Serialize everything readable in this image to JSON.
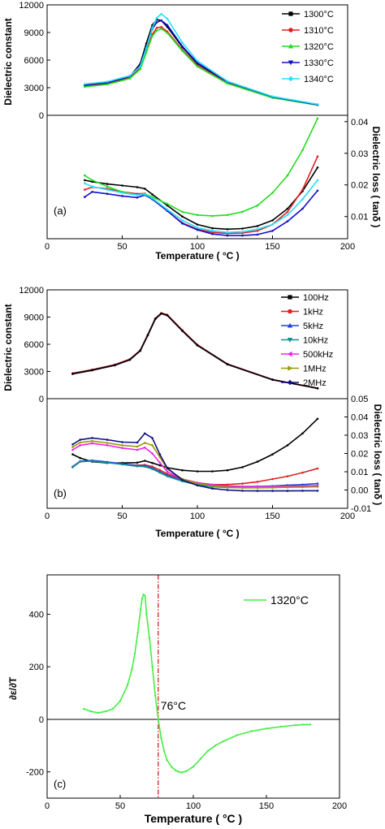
{
  "colors": {
    "1300": "#000000",
    "1310": "#e02020",
    "1320": "#22dd22",
    "1330": "#1010c8",
    "1340": "#22e0ff",
    "100Hz": "#000000",
    "1kHz": "#e02020",
    "5kHz": "#2040e0",
    "10kHz": "#109090",
    "500kHz": "#ee22ee",
    "1MHz": "#999900",
    "2MHz": "#101080",
    "c_line": "#44ee44",
    "vline": "#cc1111"
  },
  "chart_data": [
    {
      "id": "a",
      "type": "line",
      "panel_label": "(a)",
      "xlabel": "Temperature ( °C )",
      "xlim": [
        0,
        200
      ],
      "xticks": [
        "0",
        "50",
        "100",
        "150",
        "200"
      ],
      "top": {
        "ylabel": "Dielectric constant",
        "ylim": [
          0,
          12000
        ],
        "yticks": [
          "0",
          "3000",
          "6000",
          "9000",
          "12000"
        ],
        "x": [
          25,
          40,
          55,
          62,
          66,
          70,
          73,
          76,
          80,
          90,
          100,
          120,
          150,
          180
        ],
        "series": [
          {
            "name": "1300°C",
            "key": "1300",
            "marker": "square",
            "values": [
              3250,
              3500,
              4200,
              5600,
              7800,
              9800,
              10400,
              10300,
              9600,
              7400,
              5600,
              3600,
              2000,
              1150
            ]
          },
          {
            "name": "1310°C",
            "key": "1310",
            "marker": "circle",
            "values": [
              3150,
              3400,
              4050,
              5200,
              7000,
              8800,
              9500,
              9600,
              9100,
              7100,
              5400,
              3500,
              1950,
              1130
            ]
          },
          {
            "name": "1320°C",
            "key": "1320",
            "marker": "triangle-up",
            "values": [
              3100,
              3350,
              4000,
              5000,
              6800,
              8600,
              9200,
              9400,
              8950,
              7000,
              5300,
              3450,
              1900,
              1100
            ]
          },
          {
            "name": "1330°C",
            "key": "1330",
            "marker": "triangle-down",
            "values": [
              3300,
              3550,
              4250,
              5400,
              7400,
              9400,
              10100,
              10300,
              9800,
              7500,
              5700,
              3650,
              2000,
              1150
            ]
          },
          {
            "name": "1340°C",
            "key": "1340",
            "marker": "diamond",
            "values": [
              3400,
              3650,
              4300,
              5300,
              7300,
              9500,
              10600,
              11000,
              10500,
              7900,
              5900,
              3700,
              2050,
              1200
            ]
          }
        ]
      },
      "bottom": {
        "ylabel": "Dielectric loss ( tanδ )",
        "ylim": [
          0.003,
          0.042
        ],
        "yticks": [
          "0.01",
          "0.02",
          "0.03",
          "0.04"
        ],
        "x": [
          25,
          30,
          40,
          50,
          60,
          65,
          70,
          80,
          90,
          100,
          110,
          120,
          130,
          140,
          150,
          160,
          170,
          180
        ],
        "series": [
          {
            "key": "1300",
            "values": [
              0.0215,
              0.021,
              0.0203,
              0.0198,
              0.0193,
              0.0188,
              0.017,
              0.0135,
              0.01,
              0.0075,
              0.0063,
              0.006,
              0.0062,
              0.007,
              0.0088,
              0.0125,
              0.018,
              0.0255
            ]
          },
          {
            "key": "1310",
            "values": [
              0.0185,
              0.0193,
              0.0188,
              0.0178,
              0.0172,
              0.0173,
              0.0155,
              0.0118,
              0.008,
              0.006,
              0.005,
              0.0047,
              0.0048,
              0.0055,
              0.0075,
              0.0115,
              0.0185,
              0.029
            ]
          },
          {
            "key": "1320",
            "values": [
              0.023,
              0.0215,
              0.0195,
              0.0178,
              0.0168,
              0.0172,
              0.0162,
              0.014,
              0.0115,
              0.0105,
              0.0102,
              0.0105,
              0.0115,
              0.0135,
              0.0175,
              0.023,
              0.031,
              0.041
            ]
          },
          {
            "key": "1330",
            "values": [
              0.0162,
              0.0178,
              0.0172,
              0.0165,
              0.016,
              0.0168,
              0.0155,
              0.0118,
              0.0078,
              0.0058,
              0.0045,
              0.004,
              0.004,
              0.0043,
              0.0055,
              0.0085,
              0.0125,
              0.0182
            ]
          },
          {
            "key": "1340",
            "values": [
              0.0205,
              0.0195,
              0.0185,
              0.0175,
              0.0168,
              0.017,
              0.0158,
              0.0122,
              0.0088,
              0.0065,
              0.0055,
              0.005,
              0.0052,
              0.006,
              0.0075,
              0.0105,
              0.0155,
              0.0215
            ]
          }
        ]
      }
    },
    {
      "id": "b",
      "type": "line",
      "panel_label": "(b)",
      "xlabel": "Temperature ( °C )",
      "xlim": [
        0,
        200
      ],
      "xticks": [
        "0",
        "50",
        "100",
        "150",
        "200"
      ],
      "top": {
        "ylabel": "Dielectric constant",
        "ylim": [
          0,
          12000
        ],
        "yticks": [
          "0",
          "3000",
          "6000",
          "9000",
          "12000"
        ],
        "x": [
          17,
          30,
          45,
          55,
          62,
          67,
          72,
          76,
          80,
          90,
          100,
          120,
          150,
          180
        ],
        "series": [
          {
            "name": "100Hz",
            "key": "100Hz",
            "marker": "square",
            "values": [
              2750,
              3150,
              3700,
              4300,
              5300,
              7000,
              8800,
              9400,
              9200,
              7500,
              5900,
              3800,
              2100,
              1150
            ]
          },
          {
            "name": "1kHz",
            "key": "1kHz",
            "marker": "circle",
            "values": [
              2800,
              3200,
              3750,
              4350,
              5350,
              7050,
              8850,
              9450,
              9250,
              7550,
              5950,
              3820,
              2110,
              1150
            ]
          },
          {
            "name": "5kHz",
            "key": "5kHz",
            "marker": "triangle-up",
            "values": [
              2780,
              3180,
              3730,
              4330,
              5330,
              7030,
              8830,
              9420,
              9220,
              7520,
              5920,
              3810,
              2100,
              1150
            ]
          },
          {
            "name": "10kHz",
            "key": "10kHz",
            "marker": "triangle-down",
            "values": [
              2760,
              3160,
              3710,
              4310,
              5310,
              7010,
              8810,
              9410,
              9210,
              7510,
              5910,
              3800,
              2100,
              1150
            ]
          },
          {
            "name": "500kHz",
            "key": "500kHz",
            "marker": "triangle-left",
            "values": [
              2740,
              3140,
              3690,
              4290,
              5290,
              6990,
              8790,
              9390,
              9190,
              7490,
              5890,
              3790,
              2090,
              1140
            ]
          },
          {
            "name": "1MHz",
            "key": "1MHz",
            "marker": "triangle-right",
            "values": [
              2730,
              3130,
              3680,
              4280,
              5280,
              6980,
              8780,
              9380,
              9180,
              7480,
              5880,
              3780,
              2090,
              1140
            ]
          },
          {
            "name": "2MHz",
            "key": "2MHz",
            "marker": "diamond",
            "values": [
              2720,
              3120,
              3670,
              4270,
              5270,
              6970,
              8770,
              9370,
              9170,
              7470,
              5870,
              3770,
              2080,
              1140
            ]
          }
        ]
      },
      "bottom": {
        "ylabel": "Dielectric loss ( tanδ )",
        "ylim": [
          -0.01,
          0.05
        ],
        "yticks": [
          "-0.01",
          "0.00",
          "0.01",
          "0.02",
          "0.03",
          "0.04",
          "0.05"
        ],
        "x": [
          17,
          22,
          30,
          40,
          50,
          60,
          65,
          70,
          75,
          80,
          90,
          100,
          110,
          120,
          130,
          140,
          150,
          160,
          170,
          180
        ],
        "series": [
          {
            "key": "100Hz",
            "values": [
              0.0195,
              0.0175,
              0.0155,
              0.0148,
              0.0148,
              0.015,
              0.016,
              0.0148,
              0.0135,
              0.0122,
              0.0108,
              0.0102,
              0.0102,
              0.0108,
              0.0125,
              0.0155,
              0.0195,
              0.0245,
              0.031,
              0.039
            ]
          },
          {
            "key": "1kHz",
            "values": [
              0.0125,
              0.0155,
              0.016,
              0.0152,
              0.0142,
              0.0135,
              0.0138,
              0.0128,
              0.011,
              0.0088,
              0.006,
              0.004,
              0.003,
              0.003,
              0.0035,
              0.0045,
              0.006,
              0.0075,
              0.0095,
              0.0118
            ]
          },
          {
            "key": "5kHz",
            "values": [
              0.0128,
              0.0158,
              0.0162,
              0.0154,
              0.0143,
              0.0133,
              0.0133,
              0.012,
              0.01,
              0.008,
              0.0052,
              0.0032,
              0.0022,
              0.0018,
              0.0018,
              0.002,
              0.0022,
              0.0026,
              0.003,
              0.0035
            ]
          },
          {
            "key": "10kHz",
            "values": [
              0.0125,
              0.0155,
              0.0158,
              0.015,
              0.014,
              0.013,
              0.0128,
              0.0115,
              0.0095,
              0.0075,
              0.0048,
              0.0028,
              0.0018,
              0.0014,
              0.0013,
              0.0013,
              0.0014,
              0.0016,
              0.0018,
              0.002
            ]
          },
          {
            "key": "500kHz",
            "values": [
              0.022,
              0.0245,
              0.0255,
              0.0245,
              0.023,
              0.022,
              0.0232,
              0.02,
              0.015,
              0.01,
              0.006,
              0.004,
              0.0028,
              0.0022,
              0.002,
              0.002,
              0.002,
              0.0021,
              0.0022,
              0.0024
            ]
          },
          {
            "key": "1MHz",
            "values": [
              0.0235,
              0.026,
              0.0268,
              0.0258,
              0.0245,
              0.0238,
              0.0258,
              0.0245,
              0.018,
              0.0115,
              0.006,
              0.0035,
              0.0022,
              0.0015,
              0.0012,
              0.0012,
              0.0013,
              0.0015,
              0.0016,
              0.0018
            ]
          },
          {
            "key": "2MHz",
            "values": [
              0.025,
              0.0275,
              0.0285,
              0.0275,
              0.0262,
              0.026,
              0.031,
              0.0285,
              0.0195,
              0.012,
              0.0055,
              0.0025,
              0.0008,
              0.0,
              -0.0004,
              -0.0005,
              -0.0005,
              -0.0005,
              -0.0004,
              -0.0004
            ]
          }
        ]
      }
    },
    {
      "id": "c",
      "type": "line",
      "panel_label": "(c)",
      "xlabel": "Temperature ( °C )",
      "ylabel": "∂ε/∂T",
      "xlim": [
        0,
        200
      ],
      "ylim": [
        -300,
        550
      ],
      "xticks": [
        "0",
        "50",
        "100",
        "150",
        "200"
      ],
      "yticks": [
        "-200",
        "0",
        "200",
        "400"
      ],
      "annotation": "76°C",
      "vline_x": 76,
      "series": [
        {
          "name": "1320°C",
          "key": "c_line",
          "x": [
            25,
            30,
            35,
            40,
            45,
            50,
            55,
            58,
            60,
            62,
            64,
            65,
            66,
            67,
            68,
            70,
            72,
            74,
            76,
            78,
            80,
            82,
            85,
            88,
            90,
            92,
            95,
            100,
            105,
            110,
            115,
            120,
            130,
            140,
            150,
            160,
            170,
            175,
            180
          ],
          "values": [
            40,
            30,
            25,
            30,
            40,
            70,
            130,
            190,
            250,
            330,
            420,
            460,
            475,
            470,
            400,
            310,
            200,
            90,
            0,
            -70,
            -120,
            -155,
            -180,
            -195,
            -200,
            -202,
            -198,
            -180,
            -150,
            -120,
            -100,
            -85,
            -60,
            -45,
            -35,
            -28,
            -22,
            -20,
            -20
          ]
        }
      ]
    }
  ]
}
